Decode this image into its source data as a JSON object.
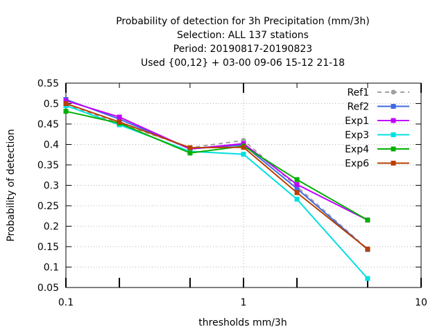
{
  "chart_data": {
    "type": "line",
    "title_lines": [
      "Probability of detection  for 3h Precipitation (mm/3h)",
      "Selection: ALL    137 stations",
      "Period: 20190817-20190823",
      "Used {00,12} + 03-00 09-06 15-12 21-18"
    ],
    "xlabel": "thresholds mm/3h",
    "ylabel": "Probability of detection",
    "x_scale": "log",
    "xlim": [
      0.1,
      10
    ],
    "ylim": [
      0.05,
      0.55
    ],
    "x_ticks": [
      0.1,
      1,
      10
    ],
    "x_tick_labels": [
      "0.1",
      "1",
      "10"
    ],
    "y_ticks": [
      0.05,
      0.1,
      0.15,
      0.2,
      0.25,
      0.3,
      0.35,
      0.4,
      0.45,
      0.5,
      0.55
    ],
    "y_tick_labels": [
      "0.05",
      "0.1",
      "0.15",
      "0.2",
      "0.25",
      "0.3",
      "0.35",
      "0.4",
      "0.45",
      "0.5",
      "0.55"
    ],
    "x_minor_ticks": [
      0.2,
      0.5,
      2,
      5
    ],
    "grid": true,
    "legend_position": "top-right",
    "x": [
      0.1,
      0.2,
      0.5,
      1,
      2,
      5
    ],
    "series": [
      {
        "name": "Ref1",
        "color": "#a0a0a0",
        "dashed": true,
        "marker": "circle",
        "values": [
          0.498,
          0.452,
          0.392,
          0.41,
          0.297,
          0.144
        ]
      },
      {
        "name": "Ref2",
        "color": "#4169e1",
        "dashed": false,
        "marker": "square",
        "values": [
          0.51,
          0.462,
          0.389,
          0.399,
          0.292,
          0.143
        ]
      },
      {
        "name": "Exp1",
        "color": "#c000ff",
        "dashed": false,
        "marker": "square",
        "values": [
          0.507,
          0.467,
          0.389,
          0.402,
          0.302,
          0.215
        ]
      },
      {
        "name": "Exp3",
        "color": "#00e0e0",
        "dashed": false,
        "marker": "square",
        "values": [
          0.495,
          0.448,
          0.383,
          0.376,
          0.266,
          0.072
        ]
      },
      {
        "name": "Exp4",
        "color": "#00b000",
        "dashed": false,
        "marker": "square",
        "values": [
          0.481,
          0.452,
          0.379,
          0.396,
          0.314,
          0.215
        ]
      },
      {
        "name": "Exp6",
        "color": "#b84000",
        "dashed": false,
        "marker": "square",
        "values": [
          0.5,
          0.455,
          0.392,
          0.393,
          0.282,
          0.144
        ]
      }
    ]
  }
}
